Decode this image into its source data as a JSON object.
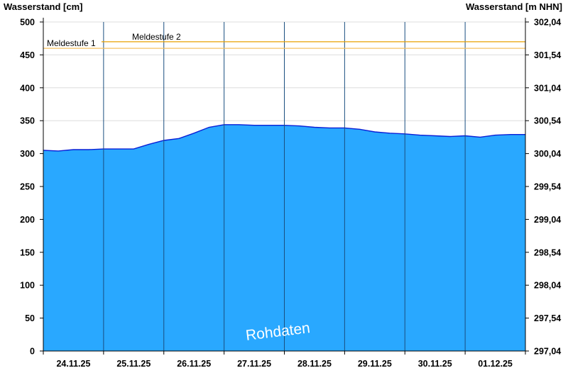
{
  "chart_data": {
    "type": "area",
    "ylabel_left": "Wasserstand [cm]",
    "ylabel_right": "Wasserstand [m NHN]",
    "ylim": [
      0,
      500
    ],
    "yticks_left": [
      0,
      50,
      100,
      150,
      200,
      250,
      300,
      350,
      400,
      450,
      500
    ],
    "yticks_right": [
      "297,04",
      "297,54",
      "298,04",
      "298,54",
      "299,04",
      "299,54",
      "300,04",
      "300,54",
      "301,04",
      "301,54",
      "302,04"
    ],
    "x_ticks": [
      "24.11.25",
      "25.11.25",
      "26.11.25",
      "27.11.25",
      "28.11.25",
      "29.11.25",
      "30.11.25",
      "01.12.25"
    ],
    "x_range_days": [
      0,
      8
    ],
    "grid": true,
    "thresholds": [
      {
        "name": "Meldestufe 1",
        "value": 460,
        "color": "#f5c060"
      },
      {
        "name": "Meldestufe 2",
        "value": 470,
        "color": "#e8a000"
      }
    ],
    "series": [
      {
        "color": "#29a8ff",
        "x": [
          0,
          0.25,
          0.5,
          0.75,
          1,
          1.25,
          1.5,
          1.75,
          2,
          2.25,
          2.5,
          2.75,
          3,
          3.25,
          3.5,
          3.75,
          4,
          4.25,
          4.5,
          4.75,
          5,
          5.25,
          5.5,
          5.75,
          6,
          6.25,
          6.5,
          6.75,
          7,
          7.25,
          7.5,
          7.75,
          8
        ],
        "y": [
          305,
          304,
          306,
          306,
          307,
          307,
          307,
          314,
          320,
          323,
          331,
          340,
          344,
          344,
          343,
          343,
          343,
          342,
          340,
          339,
          339,
          337,
          333,
          331,
          330,
          328,
          327,
          326,
          327,
          325,
          328,
          329,
          329
        ]
      }
    ],
    "annotation": "Rohdaten"
  }
}
